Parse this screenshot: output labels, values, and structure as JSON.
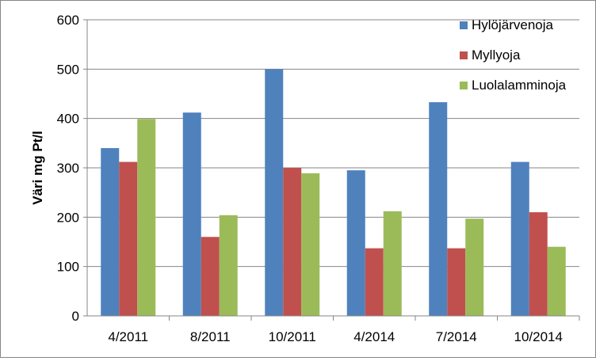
{
  "chart_data": {
    "type": "bar",
    "title": "",
    "xlabel": "",
    "ylabel": "Väri mg Pt/l",
    "ylim": [
      0,
      600
    ],
    "yticks": [
      0,
      100,
      200,
      300,
      400,
      500,
      600
    ],
    "grid": true,
    "legend_position": "top-right",
    "categories": [
      "4/2011",
      "8/2011",
      "10/2011",
      "4/2014",
      "7/2014",
      "10/2014"
    ],
    "series": [
      {
        "name": "Hylöjärvenoja",
        "color": "#4f81bd",
        "values": [
          340,
          412,
          500,
          295,
          433,
          312
        ]
      },
      {
        "name": "Myllyoja",
        "color": "#c0504d",
        "values": [
          312,
          160,
          300,
          137,
          137,
          210
        ]
      },
      {
        "name": "Luolalamminoja",
        "color": "#9bbb59",
        "values": [
          399,
          204,
          289,
          212,
          197,
          140
        ]
      }
    ]
  }
}
